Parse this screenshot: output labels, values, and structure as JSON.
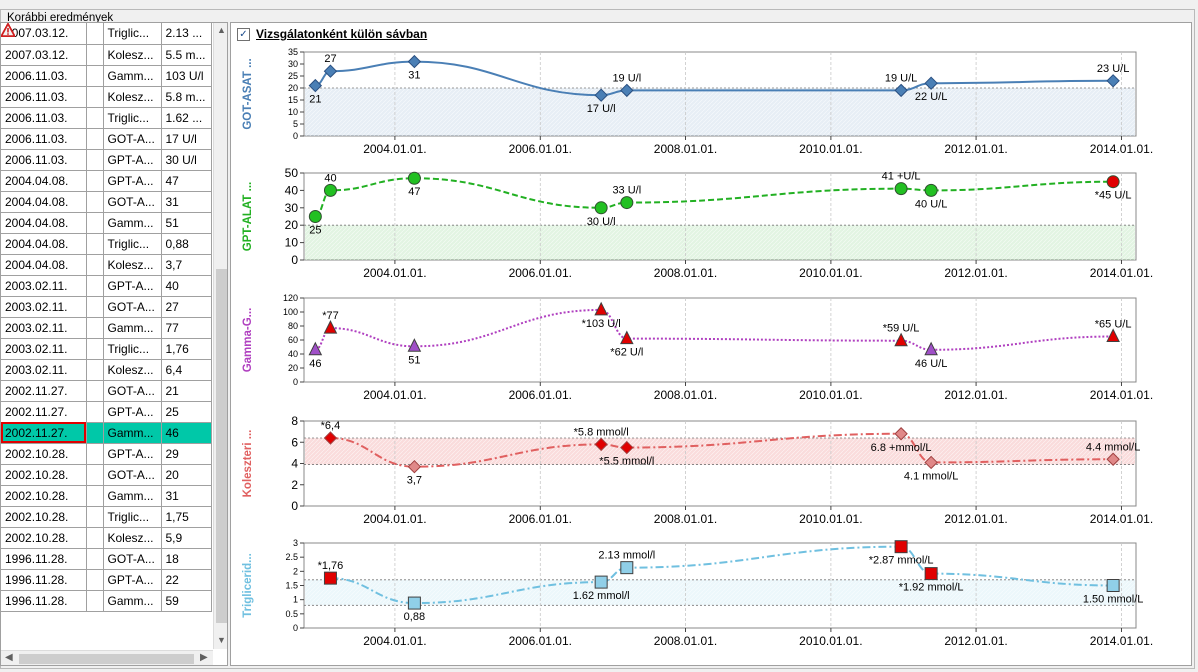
{
  "groupbox_title": "Korábbi eredmények",
  "checkbox": {
    "label": "Vizsgálatonként külön sávban",
    "checked": true,
    "mark": "✓"
  },
  "icons": {
    "warning": "warning-triangle-icon"
  },
  "colors": {
    "selected_row": "#00c8a8",
    "highlight_border": "#e00000"
  },
  "grid_rows": [
    {
      "date": "2007.03.12.",
      "warn": false,
      "test": "Triglic...",
      "value": "2.13 ..."
    },
    {
      "date": "2007.03.12.",
      "warn": true,
      "test": "Kolesz...",
      "value": "5.5 m..."
    },
    {
      "date": "2006.11.03.",
      "warn": true,
      "test": "Gamm...",
      "value": "103 U/l"
    },
    {
      "date": "2006.11.03.",
      "warn": true,
      "test": "Kolesz...",
      "value": "5.8 m..."
    },
    {
      "date": "2006.11.03.",
      "warn": false,
      "test": "Triglic...",
      "value": "1.62 ..."
    },
    {
      "date": "2006.11.03.",
      "warn": false,
      "test": "GOT-A...",
      "value": "17 U/l"
    },
    {
      "date": "2006.11.03.",
      "warn": false,
      "test": "GPT-A...",
      "value": "30 U/l"
    },
    {
      "date": "2004.04.08.",
      "warn": false,
      "test": "GPT-A...",
      "value": "47"
    },
    {
      "date": "2004.04.08.",
      "warn": false,
      "test": "GOT-A...",
      "value": "31"
    },
    {
      "date": "2004.04.08.",
      "warn": false,
      "test": "Gamm...",
      "value": "51"
    },
    {
      "date": "2004.04.08.",
      "warn": false,
      "test": "Triglic...",
      "value": "0,88"
    },
    {
      "date": "2004.04.08.",
      "warn": false,
      "test": "Kolesz...",
      "value": "3,7"
    },
    {
      "date": "2003.02.11.",
      "warn": false,
      "test": "GPT-A...",
      "value": "40"
    },
    {
      "date": "2003.02.11.",
      "warn": false,
      "test": "GOT-A...",
      "value": "27"
    },
    {
      "date": "2003.02.11.",
      "warn": true,
      "test": "Gamm...",
      "value": "77"
    },
    {
      "date": "2003.02.11.",
      "warn": true,
      "test": "Triglic...",
      "value": "1,76"
    },
    {
      "date": "2003.02.11.",
      "warn": true,
      "test": "Kolesz...",
      "value": "6,4"
    },
    {
      "date": "2002.11.27.",
      "warn": false,
      "test": "GOT-A...",
      "value": "21"
    },
    {
      "date": "2002.11.27.",
      "warn": false,
      "test": "GPT-A...",
      "value": "25"
    },
    {
      "date": "2002.11.27.",
      "warn": false,
      "test": "Gamm...",
      "value": "46",
      "selected": true
    },
    {
      "date": "2002.10.28.",
      "warn": false,
      "test": "GPT-A...",
      "value": "29"
    },
    {
      "date": "2002.10.28.",
      "warn": false,
      "test": "GOT-A...",
      "value": "20"
    },
    {
      "date": "2002.10.28.",
      "warn": false,
      "test": "Gamm...",
      "value": "31"
    },
    {
      "date": "2002.10.28.",
      "warn": false,
      "test": "Triglic...",
      "value": "1,75"
    },
    {
      "date": "2002.10.28.",
      "warn": true,
      "test": "Kolesz...",
      "value": "5,9"
    },
    {
      "date": "1996.11.28.",
      "warn": false,
      "test": "GOT-A...",
      "value": "18"
    },
    {
      "date": "1996.11.28.",
      "warn": false,
      "test": "GPT-A...",
      "value": "22"
    },
    {
      "date": "1996.11.28.",
      "warn": false,
      "test": "Gamm...",
      "value": "59"
    }
  ],
  "x_ticks": [
    "2004.01.01.",
    "2006.01.01.",
    "2008.01.01.",
    "2010.01.01.",
    "2012.01.01.",
    "2014.01.01."
  ],
  "chart_data": [
    {
      "type": "line",
      "name": "GOT-ASAT ...",
      "color": "#4a7fb5",
      "marker": "diamond",
      "dash": "",
      "ylim": [
        0,
        35
      ],
      "yticks": [
        0,
        5,
        10,
        15,
        20,
        25,
        30,
        35
      ],
      "ref_band": [
        0,
        20
      ],
      "points": [
        {
          "x": "2002.11.27.",
          "y": 21,
          "label": "21",
          "lp": "b"
        },
        {
          "x": "2003.02.11.",
          "y": 27,
          "label": "27",
          "lp": "t"
        },
        {
          "x": "2004.04.08.",
          "y": 31,
          "label": "31",
          "lp": "b"
        },
        {
          "x": "2006.11.03.",
          "y": 17,
          "label": "17 U/l",
          "lp": "b"
        },
        {
          "x": "2007.03.12.",
          "y": 19,
          "label": "19 U/l",
          "lp": "t"
        },
        {
          "x": "2010.12.20.",
          "y": 19,
          "label": "19  U/L",
          "lp": "t"
        },
        {
          "x": "2011.05.20.",
          "y": 22,
          "label": "22  U/L",
          "lp": "b"
        },
        {
          "x": "2013.11.20.",
          "y": 23,
          "label": "23 U/L",
          "lp": "t"
        }
      ]
    },
    {
      "type": "line",
      "name": "GPT-ALAT ...",
      "color": "#22b022",
      "marker": "circle",
      "dash": "6,3",
      "ylim": [
        0,
        50
      ],
      "yticks": [
        0,
        10,
        20,
        30,
        40,
        50
      ],
      "ref_band": [
        0,
        20
      ],
      "points": [
        {
          "x": "2002.11.27.",
          "y": 25,
          "label": "25",
          "lp": "b"
        },
        {
          "x": "2003.02.11.",
          "y": 40,
          "label": "40",
          "lp": "t"
        },
        {
          "x": "2004.04.08.",
          "y": 47,
          "label": "47",
          "lp": "b"
        },
        {
          "x": "2006.11.03.",
          "y": 30,
          "label": "30 U/l",
          "lp": "b"
        },
        {
          "x": "2007.03.12.",
          "y": 33,
          "label": "33 U/l",
          "lp": "t"
        },
        {
          "x": "2010.12.20.",
          "y": 41,
          "label": "41 +U/L",
          "lp": "t"
        },
        {
          "x": "2011.05.20.",
          "y": 40,
          "label": "40  U/L",
          "lp": "b"
        },
        {
          "x": "2013.11.20.",
          "y": 45,
          "label": "*45 U/L",
          "lp": "b",
          "flag": true
        }
      ]
    },
    {
      "type": "line",
      "name": "Gamma-G...",
      "color": "#b040c0",
      "marker": "triangle",
      "dash": "2,2",
      "ylim": [
        0,
        120
      ],
      "yticks": [
        0,
        20,
        40,
        60,
        80,
        100,
        120
      ],
      "ref_band": null,
      "points": [
        {
          "x": "2002.11.27.",
          "y": 46,
          "label": "46",
          "lp": "b"
        },
        {
          "x": "2003.02.11.",
          "y": 77,
          "label": "*77",
          "lp": "t",
          "flag": true
        },
        {
          "x": "2004.04.08.",
          "y": 51,
          "label": "51",
          "lp": "b"
        },
        {
          "x": "2006.11.03.",
          "y": 103,
          "label": "*103 U/l",
          "lp": "b",
          "flag": true
        },
        {
          "x": "2007.03.12.",
          "y": 62,
          "label": "*62 U/l",
          "lp": "b",
          "flag": true
        },
        {
          "x": "2010.12.20.",
          "y": 59,
          "label": "*59 U/L",
          "lp": "t",
          "flag": true
        },
        {
          "x": "2011.05.20.",
          "y": 46,
          "label": "46 U/L",
          "lp": "b"
        },
        {
          "x": "2013.11.20.",
          "y": 65,
          "label": "*65 U/L",
          "lp": "t",
          "flag": true
        }
      ]
    },
    {
      "type": "line",
      "name": "Koleszteri ...",
      "color": "#e06060",
      "marker": "diamond",
      "dash": "8,3,2,3",
      "ylim": [
        0,
        8
      ],
      "yticks": [
        0,
        2,
        4,
        6,
        8
      ],
      "ref_band": [
        3.9,
        6.4
      ],
      "band_color": "#f6c0c0",
      "points": [
        {
          "x": "2003.02.11.",
          "y": 6.4,
          "label": "*6,4",
          "lp": "t",
          "flag": true
        },
        {
          "x": "2004.04.08.",
          "y": 3.7,
          "label": "3,7",
          "lp": "b"
        },
        {
          "x": "2006.11.03.",
          "y": 5.8,
          "label": "*5.8 mmol/l",
          "lp": "t",
          "flag": true
        },
        {
          "x": "2007.03.12.",
          "y": 5.5,
          "label": "*5.5 mmol/l",
          "lp": "b",
          "flag": true
        },
        {
          "x": "2010.12.20.",
          "y": 6.8,
          "label": "6.8 +mmol/L",
          "lp": "b"
        },
        {
          "x": "2011.05.20.",
          "y": 4.1,
          "label": "4.1  mmol/L",
          "lp": "b"
        },
        {
          "x": "2013.11.20.",
          "y": 4.4,
          "label": "4.4 mmol/L",
          "lp": "t"
        }
      ]
    },
    {
      "type": "line",
      "name": "Triglicerid...",
      "color": "#70c0e0",
      "marker": "square",
      "dash": "8,3,2,3",
      "ylim": [
        0,
        3
      ],
      "yticks": [
        0,
        0.5,
        1,
        1.5,
        2,
        2.5,
        3
      ],
      "ref_band": [
        0.8,
        1.7
      ],
      "points": [
        {
          "x": "2003.02.11.",
          "y": 1.76,
          "label": "*1,76",
          "lp": "t",
          "flag": true
        },
        {
          "x": "2004.04.08.",
          "y": 0.88,
          "label": "0,88",
          "lp": "b"
        },
        {
          "x": "2006.11.03.",
          "y": 1.62,
          "label": "1.62 mmol/l",
          "lp": "b"
        },
        {
          "x": "2007.03.12.",
          "y": 2.13,
          "label": "2.13 mmol/l",
          "lp": "t"
        },
        {
          "x": "2010.12.20.",
          "y": 2.87,
          "label": "*2.87 mmol/L",
          "lp": "b",
          "flag": true
        },
        {
          "x": "2011.05.20.",
          "y": 1.92,
          "label": "*1.92 mmol/L",
          "lp": "b",
          "flag": true
        },
        {
          "x": "2013.11.20.",
          "y": 1.5,
          "label": "1.50 mmol/L",
          "lp": "b"
        }
      ]
    }
  ]
}
